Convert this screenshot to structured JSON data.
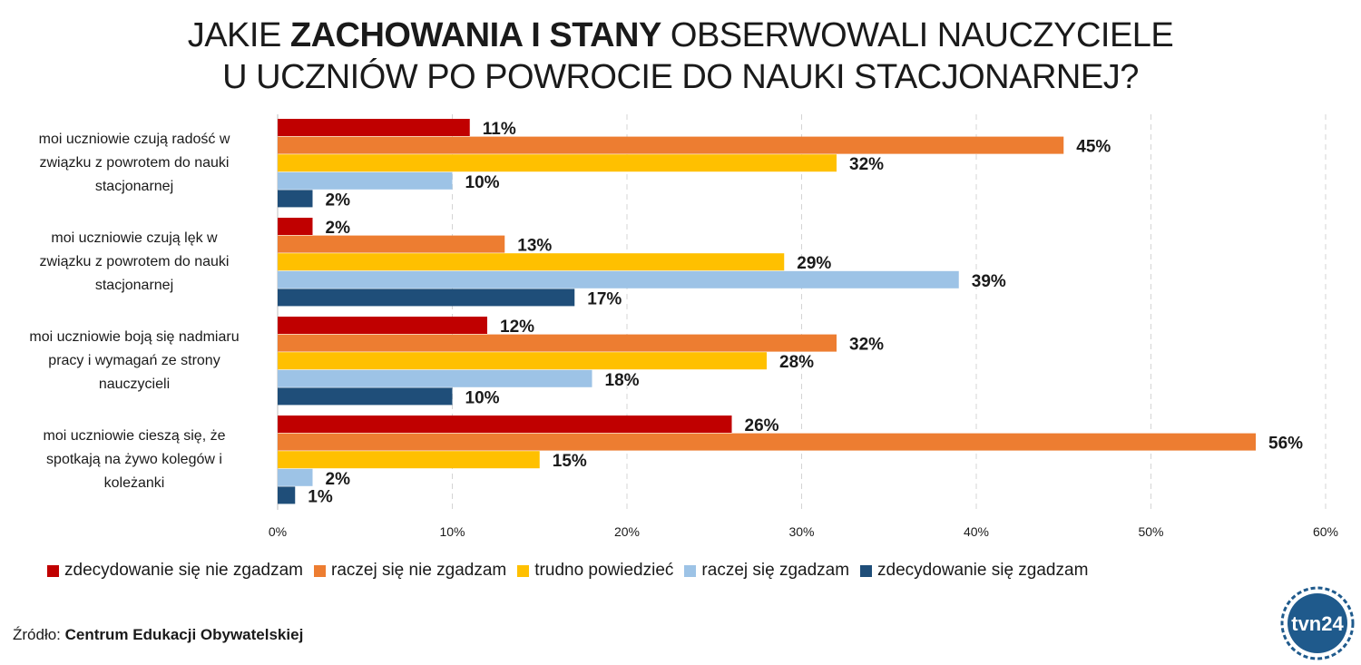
{
  "title": {
    "line1_prefix": "JAKIE ",
    "line1_bold": "ZACHOWANIA I STANY",
    "line1_suffix": " OBSERWOWALI NAUCZYCIELE",
    "line2": "U UCZNIÓW PO POWROCIE DO NAUKI STACJONARNEJ?"
  },
  "chart_data": {
    "type": "bar",
    "orientation": "horizontal",
    "categories": [
      "moi uczniowie czują radość w związku z powrotem do nauki stacjonarnej",
      "moi uczniowie czują lęk w związku z powrotem do nauki stacjonarnej",
      "moi uczniowie boją się nadmiaru pracy i wymagań ze strony nauczycieli",
      "moi uczniowie cieszą się, że spotkają na żywo kolegów i koleżanki"
    ],
    "category_lines": [
      [
        "moi uczniowie czują radość w",
        "związku z powrotem do nauki",
        "stacjonarnej"
      ],
      [
        "moi uczniowie czują lęk w",
        "związku z powrotem do nauki",
        "stacjonarnej"
      ],
      [
        "moi uczniowie boją się nadmiaru",
        "pracy i wymagań ze strony",
        "nauczycieli"
      ],
      [
        "moi uczniowie cieszą się, że",
        "spotkają na żywo kolegów i",
        "koleżanki"
      ]
    ],
    "series": [
      {
        "name": "zdecydowanie się nie zgadzam",
        "color": "#c00000",
        "values": [
          11,
          2,
          12,
          26
        ]
      },
      {
        "name": "raczej się nie zgadzam",
        "color": "#ed7d31",
        "values": [
          45,
          13,
          32,
          56
        ]
      },
      {
        "name": "trudno powiedzieć",
        "color": "#ffc000",
        "values": [
          32,
          29,
          28,
          15
        ]
      },
      {
        "name": "raczej się zgadzam",
        "color": "#9dc3e6",
        "values": [
          10,
          39,
          18,
          2
        ]
      },
      {
        "name": "zdecydowanie się zgadzam",
        "color": "#1f4e79",
        "values": [
          2,
          17,
          10,
          1
        ]
      }
    ],
    "value_suffix": "%",
    "xlim": [
      0,
      60
    ],
    "xticks": [
      "0%",
      "10%",
      "20%",
      "30%",
      "40%",
      "50%",
      "60%"
    ],
    "grid": true,
    "legend_position": "bottom"
  },
  "source": {
    "prefix": "Źródło: ",
    "name": "Centrum Edukacji Obywatelskiej"
  },
  "logo": {
    "text": "tvn24",
    "color": "#1f5a8c"
  }
}
